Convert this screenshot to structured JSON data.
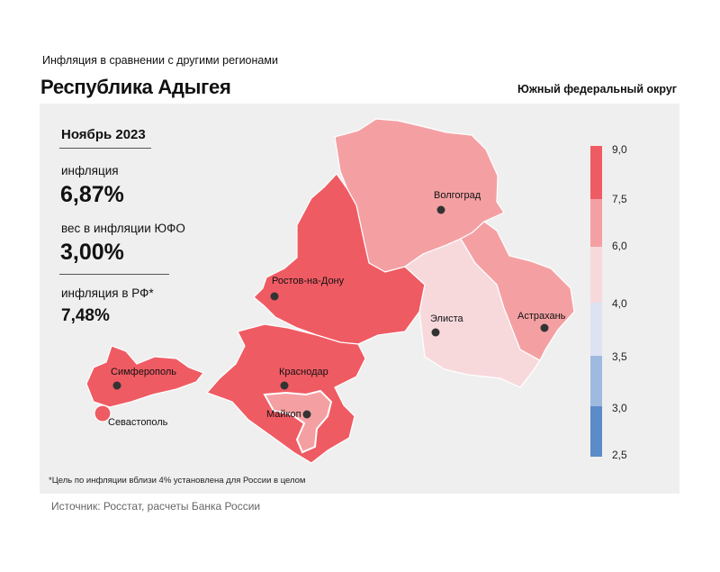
{
  "header": {
    "subtitle": "Инфляция в сравнении с другими регионами",
    "title": "Республика Адыгея",
    "district": "Южный федеральный округ"
  },
  "stats": {
    "month": "Ноябрь 2023",
    "inflation_label": "инфляция",
    "inflation_value": "6,87%",
    "weight_label": "вес в инфляции ЮФО",
    "weight_value": "3,00%",
    "rf_label": "инфляция в РФ*",
    "rf_value": "7,48%"
  },
  "footnote": "*Цель по инфляции вблизи 4% установлена для России в целом",
  "source": "Источник: Росстат, расчеты Банка России",
  "cities": {
    "volgograd": "Волгоград",
    "rostov": "Ростов-на-Дону",
    "elista": "Элиста",
    "astrakhan": "Астрахань",
    "simferopol": "Симферополь",
    "sevastopol": "Севастополь",
    "krasnodar": "Краснодар",
    "maykop": "Майкоп"
  },
  "legend": {
    "ticks": [
      "9,0",
      "7,5",
      "6,0",
      "4,0",
      "3,5",
      "3,0",
      "2,5"
    ],
    "colors": {
      "band_7_5_9_0": "#ef5b63",
      "band_6_0_7_5": "#f4a0a3",
      "band_4_0_6_0": "#f7d9dc",
      "band_3_5_4_0": "#dde3f2",
      "band_3_0_3_5": "#9fbadf",
      "band_2_5_3_0": "#5b8bc9"
    }
  },
  "region_colors": {
    "volgograd": "#f4a0a3",
    "rostov": "#ef5b63",
    "kalmykia": "#f7d9dc",
    "astrakhan": "#f4a0a3",
    "krasnodar": "#ef5b63",
    "crimea": "#ef5b63",
    "sevastopol": "#ef5b63",
    "adygea": "#f4a0a3"
  }
}
